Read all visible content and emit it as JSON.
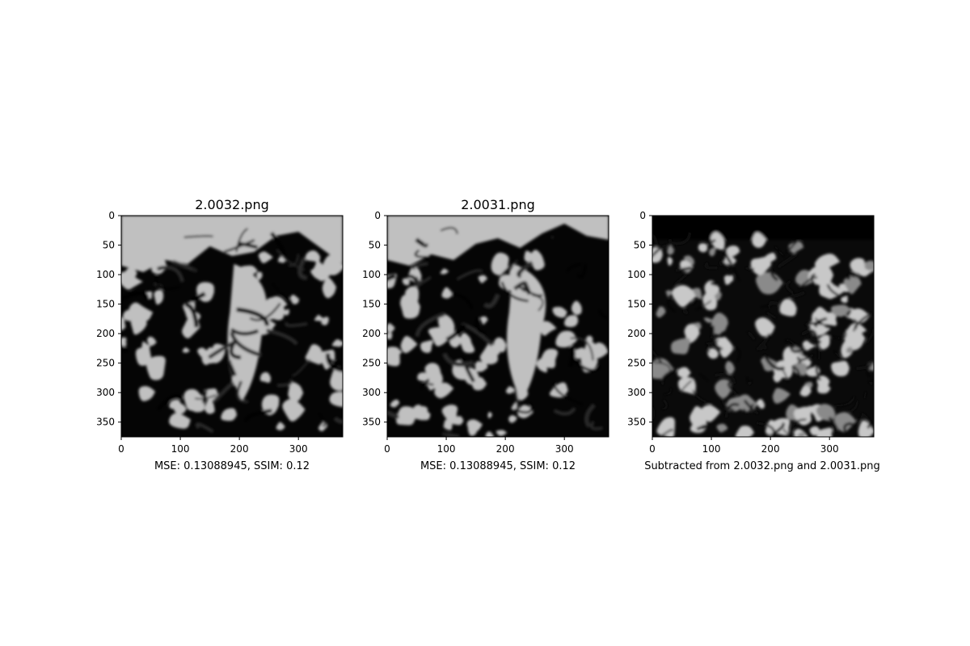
{
  "colors": {
    "light": "#c0c0c0",
    "dark": "#050505",
    "edge": "#2a2a2a",
    "background": "#ffffff"
  },
  "chart_data": [
    {
      "type": "heatmap",
      "title": "2.0032.png",
      "xlabel": "MSE: 0.13088945, SSIM: 0.12",
      "ylabel": "",
      "xlim": [
        0,
        375
      ],
      "ylim": [
        375,
        0
      ],
      "xticks": [
        0,
        100,
        200,
        300
      ],
      "yticks": [
        0,
        50,
        100,
        150,
        200,
        250,
        300,
        350
      ],
      "grid": false,
      "colormap": "gray",
      "image": "binary texture: light background at top, dark fibrous region below, light central channel around x=200-300"
    },
    {
      "type": "heatmap",
      "title": "2.0031.png",
      "xlabel": "MSE: 0.13088945, SSIM: 0.12",
      "ylabel": "",
      "xlim": [
        0,
        375
      ],
      "ylim": [
        375,
        0
      ],
      "xticks": [
        0,
        100,
        200,
        300
      ],
      "yticks": [
        0,
        50,
        100,
        150,
        200,
        250,
        300,
        350
      ],
      "grid": false,
      "colormap": "gray",
      "image": "binary texture: light background at top, dark fibrous region below, light central channel around x=230-300"
    },
    {
      "type": "heatmap",
      "title": "",
      "xlabel": "Subtracted from 2.0032.png and 2.0031.png",
      "ylabel": "",
      "xlim": [
        0,
        375
      ],
      "ylim": [
        375,
        0
      ],
      "xticks": [
        0,
        100,
        200,
        300
      ],
      "yticks": [
        0,
        50,
        100,
        150,
        200,
        250,
        300,
        350
      ],
      "grid": false,
      "colormap": "gray",
      "image": "difference image: black top band, dense light/dark edge texture below"
    }
  ]
}
